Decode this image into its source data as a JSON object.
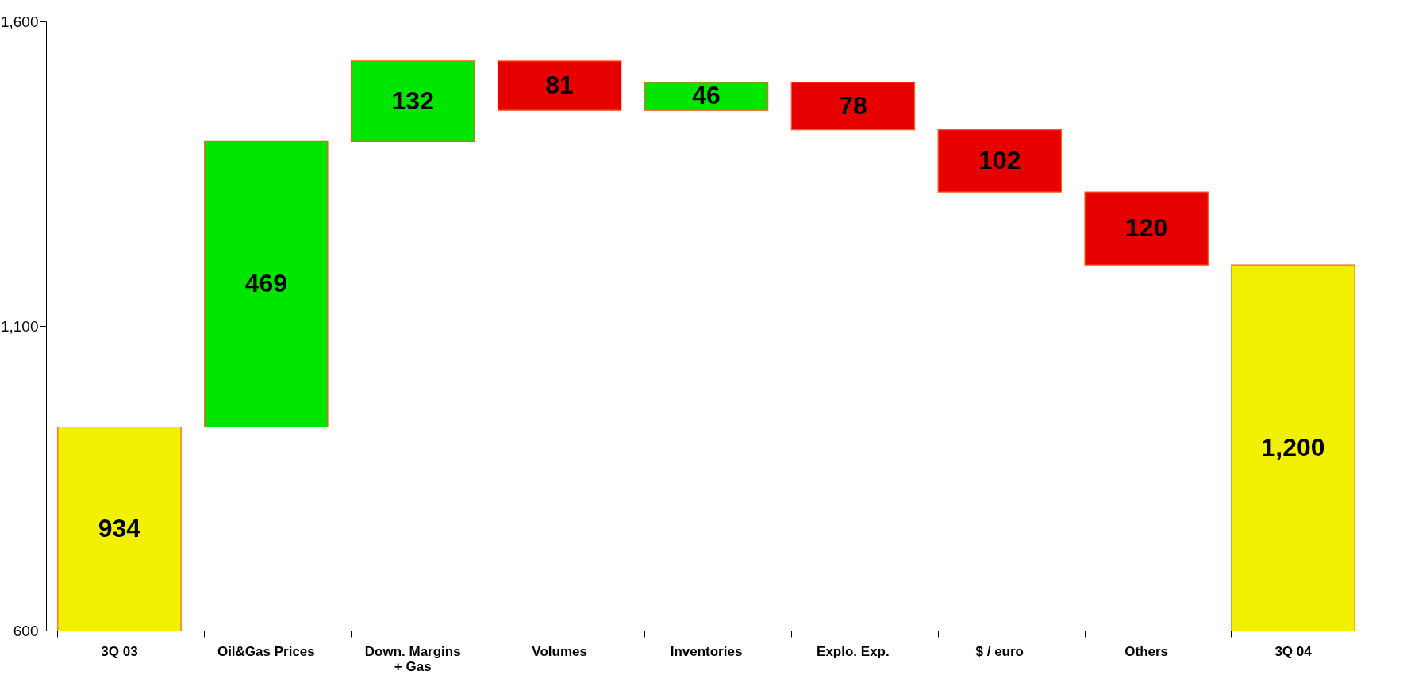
{
  "chart_data": {
    "type": "bar",
    "categories": [
      "3Q 03",
      "Oil&Gas Prices",
      "Down. Margins\n+ Gas",
      "Volumes",
      "Inventories",
      "Explo. Exp.",
      "$ / euro",
      "Others",
      "3Q 04"
    ],
    "values": [
      934,
      469,
      132,
      -81,
      46,
      -78,
      -102,
      -120,
      1200
    ],
    "base": [
      null,
      934,
      1403,
      1535,
      1454,
      1500,
      1422,
      1320,
      null
    ],
    "colors": [
      "#f0f000",
      "#00e600",
      "#00e600",
      "#e60000",
      "#00e600",
      "#e60000",
      "#e60000",
      "#e60000",
      "#f0f000"
    ],
    "ylim": [
      600,
      1600
    ],
    "yticks": [
      600,
      {
        "value": 1100,
        "label": "1,100"
      },
      {
        "value": 1600,
        "label": "1,600"
      }
    ],
    "value_labels": [
      "934",
      "469",
      "132",
      "81",
      "46",
      "78",
      "102",
      "120",
      "1,200"
    ],
    "grid": false
  }
}
